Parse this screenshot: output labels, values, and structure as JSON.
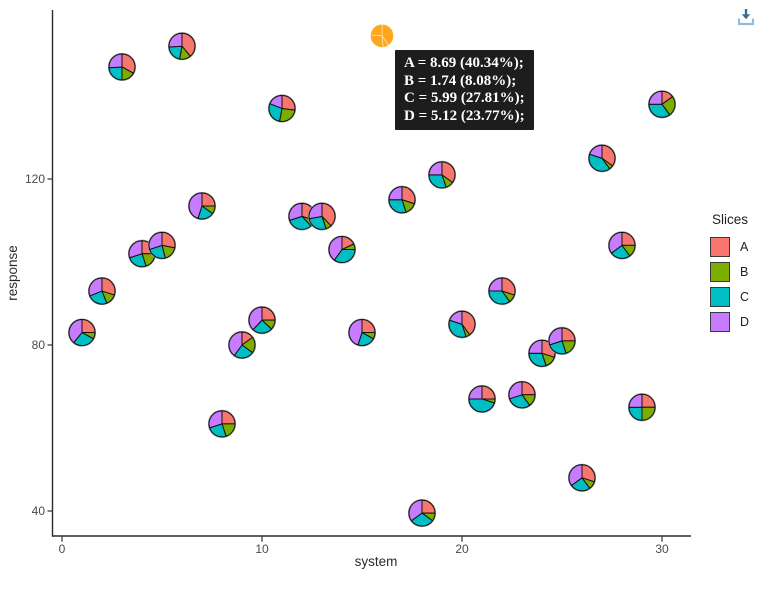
{
  "toolbar": {
    "download_tooltip": "download-plot"
  },
  "legend": {
    "title": "Slices",
    "entries": [
      {
        "label": "A",
        "color": "#F8766D"
      },
      {
        "label": "B",
        "color": "#7CAE00"
      },
      {
        "label": "C",
        "color": "#00BFC4"
      },
      {
        "label": "D",
        "color": "#C77CFF"
      }
    ]
  },
  "tooltip": {
    "lines": [
      "A = 8.69 (40.34%);",
      "B = 1.74 (8.08%);",
      "C = 5.99 (27.81%);",
      "D = 5.12 (23.77%);"
    ]
  },
  "chart_data": {
    "type": "scatter-pie",
    "title": "",
    "xlabel": "system",
    "ylabel": "response",
    "x_ticks": [
      0,
      10,
      20,
      30
    ],
    "y_ticks": [
      40,
      80,
      120
    ],
    "xlim": [
      -0.5,
      31.5
    ],
    "ylim": [
      34,
      161
    ],
    "grid": false,
    "legend_position": "right",
    "slice_colors": {
      "A": "#F8766D",
      "B": "#7CAE00",
      "C": "#00BFC4",
      "D": "#C77CFF"
    },
    "hover_highlight_color": "#FFA51E",
    "hovered_point": {
      "x": 16,
      "y": 154.5,
      "values": {
        "A": 8.69,
        "B": 1.74,
        "C": 5.99,
        "D": 5.12
      },
      "percents": {
        "A": 40.34,
        "B": 8.08,
        "C": 27.81,
        "D": 23.77
      }
    },
    "points": [
      {
        "x": 1,
        "y": 83,
        "A": 25,
        "B": 8,
        "C": 28,
        "D": 39
      },
      {
        "x": 2,
        "y": 93,
        "A": 30,
        "B": 14,
        "C": 25,
        "D": 31
      },
      {
        "x": 3,
        "y": 147,
        "A": 33,
        "B": 17,
        "C": 24,
        "D": 26
      },
      {
        "x": 4,
        "y": 102,
        "A": 25,
        "B": 20,
        "C": 25,
        "D": 30
      },
      {
        "x": 5,
        "y": 104,
        "A": 28,
        "B": 18,
        "C": 24,
        "D": 30
      },
      {
        "x": 6,
        "y": 152,
        "A": 39,
        "B": 14,
        "C": 21,
        "D": 26
      },
      {
        "x": 7,
        "y": 113.5,
        "A": 25,
        "B": 10,
        "C": 20,
        "D": 45
      },
      {
        "x": 8,
        "y": 61,
        "A": 25,
        "B": 20,
        "C": 25,
        "D": 30
      },
      {
        "x": 9,
        "y": 80,
        "A": 15,
        "B": 20,
        "C": 25,
        "D": 40
      },
      {
        "x": 10,
        "y": 86,
        "A": 25,
        "B": 12,
        "C": 25,
        "D": 38
      },
      {
        "x": 11,
        "y": 137,
        "A": 27,
        "B": 26,
        "C": 28,
        "D": 19
      },
      {
        "x": 12,
        "y": 111,
        "A": 30,
        "B": 8,
        "C": 32,
        "D": 30
      },
      {
        "x": 13,
        "y": 111,
        "A": 38,
        "B": 7,
        "C": 27,
        "D": 28
      },
      {
        "x": 14,
        "y": 103,
        "A": 18,
        "B": 7,
        "C": 35,
        "D": 40
      },
      {
        "x": 15,
        "y": 83,
        "A": 25,
        "B": 8,
        "C": 22,
        "D": 45
      },
      {
        "x": 16,
        "y": 154.5,
        "A": 40.34,
        "B": 8.08,
        "C": 27.81,
        "D": 23.77,
        "hovered": true
      },
      {
        "x": 17,
        "y": 115,
        "A": 30,
        "B": 15,
        "C": 30,
        "D": 25
      },
      {
        "x": 18,
        "y": 39.5,
        "A": 25,
        "B": 10,
        "C": 30,
        "D": 35
      },
      {
        "x": 19,
        "y": 121,
        "A": 35,
        "B": 10,
        "C": 30,
        "D": 25
      },
      {
        "x": 20,
        "y": 85,
        "A": 40,
        "B": 5,
        "C": 35,
        "D": 20
      },
      {
        "x": 21,
        "y": 67,
        "A": 25,
        "B": 5,
        "C": 45,
        "D": 25
      },
      {
        "x": 22,
        "y": 93,
        "A": 30,
        "B": 10,
        "C": 35,
        "D": 25
      },
      {
        "x": 23,
        "y": 68,
        "A": 25,
        "B": 15,
        "C": 30,
        "D": 30
      },
      {
        "x": 24,
        "y": 78,
        "A": 30,
        "B": 15,
        "C": 30,
        "D": 25
      },
      {
        "x": 25,
        "y": 81,
        "A": 25,
        "B": 20,
        "C": 25,
        "D": 30
      },
      {
        "x": 26,
        "y": 48,
        "A": 30,
        "B": 10,
        "C": 25,
        "D": 35
      },
      {
        "x": 27,
        "y": 125,
        "A": 35,
        "B": 5,
        "C": 40,
        "D": 20
      },
      {
        "x": 28,
        "y": 104,
        "A": 25,
        "B": 15,
        "C": 25,
        "D": 35
      },
      {
        "x": 29,
        "y": 65,
        "A": 25,
        "B": 25,
        "C": 25,
        "D": 25
      },
      {
        "x": 30,
        "y": 138,
        "A": 15,
        "B": 25,
        "C": 35,
        "D": 25
      }
    ]
  }
}
